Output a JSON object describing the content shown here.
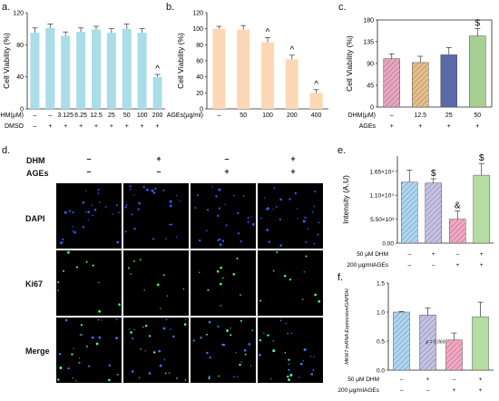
{
  "panels": {
    "a": "a.",
    "b": "b.",
    "c": "c.",
    "d": "d.",
    "e": "e.",
    "f": "f."
  },
  "chart_data": [
    {
      "id": "a",
      "type": "bar",
      "color": "#a9dde8",
      "ylabel": "Cell Viability (%)",
      "ylim": [
        0,
        120
      ],
      "yticks": [
        0,
        40,
        80,
        120
      ],
      "categories": [
        "–",
        "–",
        "3.125",
        "6.25",
        "12.5",
        "25",
        "50",
        "100",
        "200"
      ],
      "row_labels": [
        "DHM(μM)",
        "DMSO"
      ],
      "row2": [
        "–",
        "+",
        "+",
        "+",
        "+",
        "+",
        "+",
        "+",
        "+"
      ],
      "values": [
        95,
        101,
        91,
        96,
        99,
        95,
        100,
        95,
        40
      ],
      "errors": [
        6,
        5,
        5,
        5,
        4,
        5,
        6,
        5,
        3
      ],
      "annotations": [
        {
          "index": 8,
          "text": "^"
        }
      ]
    },
    {
      "id": "b",
      "type": "bar",
      "color": "#fdd8b5",
      "ylabel": "Cell Viability (%)",
      "ylim": [
        0,
        120
      ],
      "yticks": [
        0,
        20,
        40,
        60,
        80,
        100,
        120
      ],
      "categories": [
        "–",
        "50",
        "100",
        "200",
        "400"
      ],
      "row_labels": [
        "AGEs(μg/ml)"
      ],
      "values": [
        100,
        99,
        83,
        62,
        20
      ],
      "errors": [
        3,
        5,
        6,
        5,
        4
      ],
      "annotations": [
        {
          "index": 2,
          "text": "^"
        },
        {
          "index": 3,
          "text": "^"
        },
        {
          "index": 4,
          "text": "^"
        }
      ]
    },
    {
      "id": "c",
      "type": "bar",
      "ylabel": "Cell Viability (%)",
      "ylim": [
        0,
        180
      ],
      "yticks": [
        0,
        45,
        90,
        135,
        180
      ],
      "categories": [
        "–",
        "12.5",
        "25",
        "50"
      ],
      "row_labels": [
        "DHM(μM)",
        "AGEs"
      ],
      "row2": [
        "+",
        "+",
        "+",
        "+"
      ],
      "values": [
        100,
        92,
        108,
        147
      ],
      "errors": [
        10,
        13,
        15,
        15
      ],
      "colors": [
        "#e8a6c0",
        "#e6c08c",
        "#5a6aa8",
        "#a7cf92"
      ],
      "annotations": [
        {
          "index": 3,
          "text": "$"
        }
      ]
    },
    {
      "id": "e",
      "type": "bar",
      "ylabel": "Intensity (A.U)",
      "ylim": [
        0,
        20000
      ],
      "yticks": [
        0,
        5500,
        11000,
        16500
      ],
      "ytick_labels": [
        "0.00",
        "5.50×10³",
        "1.10×10⁴",
        "1.65×10⁴"
      ],
      "row_labels": [
        "50 μM DHM",
        "200 μg/mlAGEs"
      ],
      "row1": [
        "–",
        "+",
        "–",
        "+"
      ],
      "row2": [
        "–",
        "–",
        "+",
        "+"
      ],
      "values": [
        14000,
        13800,
        5500,
        15600
      ],
      "errors": [
        2800,
        1000,
        1900,
        2700
      ],
      "colors": [
        "#aed6f1",
        "#c5c2e6",
        "#f2a7c2",
        "#b5dca2"
      ],
      "annotations": [
        {
          "index": 1,
          "text": "$"
        },
        {
          "index": 2,
          "text": "&"
        },
        {
          "index": 3,
          "text": "$"
        }
      ]
    },
    {
      "id": "f",
      "type": "bar",
      "ylabel": "MKI67 mRNA Expression/GAPDH",
      "ylim": [
        0,
        1.5
      ],
      "yticks": [
        0,
        0.5,
        1.0,
        1.5
      ],
      "ytick_labels": [
        "0.0",
        "0.5",
        "1.0",
        "1.5"
      ],
      "row_labels": [
        "50 μM DHM",
        "200 μg/mlAGEs"
      ],
      "row1": [
        "–",
        "+",
        "–",
        "+"
      ],
      "row2": [
        "–",
        "–",
        "+",
        "+"
      ],
      "values": [
        1.0,
        0.95,
        0.52,
        0.92
      ],
      "errors": [
        0.01,
        0.12,
        0.12,
        0.25
      ],
      "colors": [
        "#aed6f1",
        "#c5c2e6",
        "#f2a7c2",
        "#b5dca2"
      ],
      "annotations": [
        {
          "index": 2,
          "text": "p = 0.069"
        }
      ]
    }
  ],
  "microscopy": {
    "header_labels": [
      "DHM",
      "AGEs"
    ],
    "columns": [
      {
        "dhm": "–",
        "ages": "–"
      },
      {
        "dhm": "+",
        "ages": "–"
      },
      {
        "dhm": "–",
        "ages": "+"
      },
      {
        "dhm": "+",
        "ages": "+"
      }
    ],
    "rows": [
      "DAPI",
      "Ki67",
      "Merge"
    ]
  }
}
